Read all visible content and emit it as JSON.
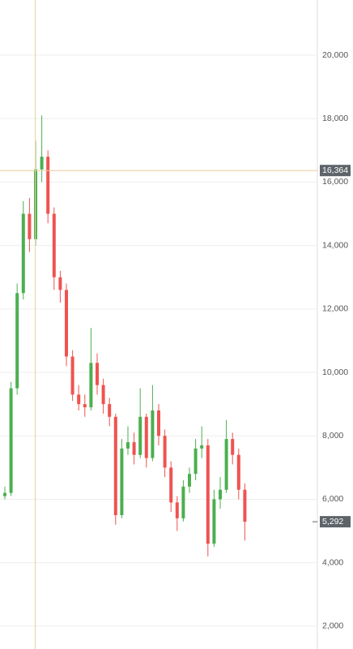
{
  "chart_data": {
    "type": "candlestick",
    "open": [
      6100,
      6200,
      9500,
      12500,
      15000,
      14200,
      16400,
      16800,
      15000,
      13000,
      12600,
      10500,
      9300,
      9000,
      8900,
      10300,
      9600,
      9000,
      8600,
      5500,
      7600,
      7800,
      7400,
      8600,
      7300,
      8800,
      8000,
      7000,
      5900,
      5400,
      6400,
      6800,
      7600,
      7700,
      4600,
      6000,
      6300,
      7900,
      7400,
      6300
    ],
    "high": [
      6400,
      9700,
      12800,
      15400,
      15500,
      17300,
      18100,
      17000,
      15200,
      13200,
      12800,
      10700,
      9600,
      9300,
      11400,
      10600,
      9800,
      9200,
      8700,
      7900,
      8300,
      8100,
      9500,
      8700,
      9600,
      9000,
      8200,
      7200,
      6100,
      6600,
      7000,
      7900,
      8300,
      7900,
      6300,
      6700,
      8500,
      8100,
      7600,
      6500
    ],
    "low": [
      6000,
      6100,
      9300,
      12300,
      13800,
      14000,
      16000,
      14700,
      12600,
      12200,
      10200,
      9100,
      8800,
      8600,
      8800,
      9300,
      8700,
      8300,
      5200,
      5400,
      7400,
      7100,
      7300,
      7000,
      7200,
      7700,
      6700,
      5600,
      5000,
      5300,
      6200,
      6600,
      7300,
      4200,
      4500,
      5700,
      6200,
      7100,
      6000,
      4700
    ],
    "close": [
      6200,
      9500,
      12500,
      15000,
      14200,
      16400,
      16800,
      15000,
      13000,
      12600,
      10500,
      9300,
      9000,
      8900,
      10300,
      9600,
      9000,
      8600,
      5500,
      7600,
      7800,
      7400,
      8600,
      7300,
      8800,
      8000,
      7000,
      5900,
      5400,
      6400,
      6800,
      7600,
      7700,
      4600,
      6000,
      6300,
      7900,
      7400,
      6300,
      5292
    ],
    "up_color": "#4caf50",
    "down_color": "#ef5350",
    "ylim": [
      1280,
      21740
    ],
    "yticks": [
      {
        "value": 2000,
        "label": "2,000"
      },
      {
        "value": 4000,
        "label": "4,000"
      },
      {
        "value": 6000,
        "label": "6,000"
      },
      {
        "value": 8000,
        "label": "8,000"
      },
      {
        "value": 10000,
        "label": "10,000"
      },
      {
        "value": 12000,
        "label": "12,000"
      },
      {
        "value": 14000,
        "label": "14,000"
      },
      {
        "value": 16000,
        "label": "16,000"
      },
      {
        "value": 18000,
        "label": "18,000"
      },
      {
        "value": 20000,
        "label": "20,000"
      }
    ],
    "grid": true,
    "crosshair_price": {
      "value": 16364,
      "label": "16,364"
    },
    "last_price": {
      "value": 5292,
      "label": "5,292"
    }
  }
}
